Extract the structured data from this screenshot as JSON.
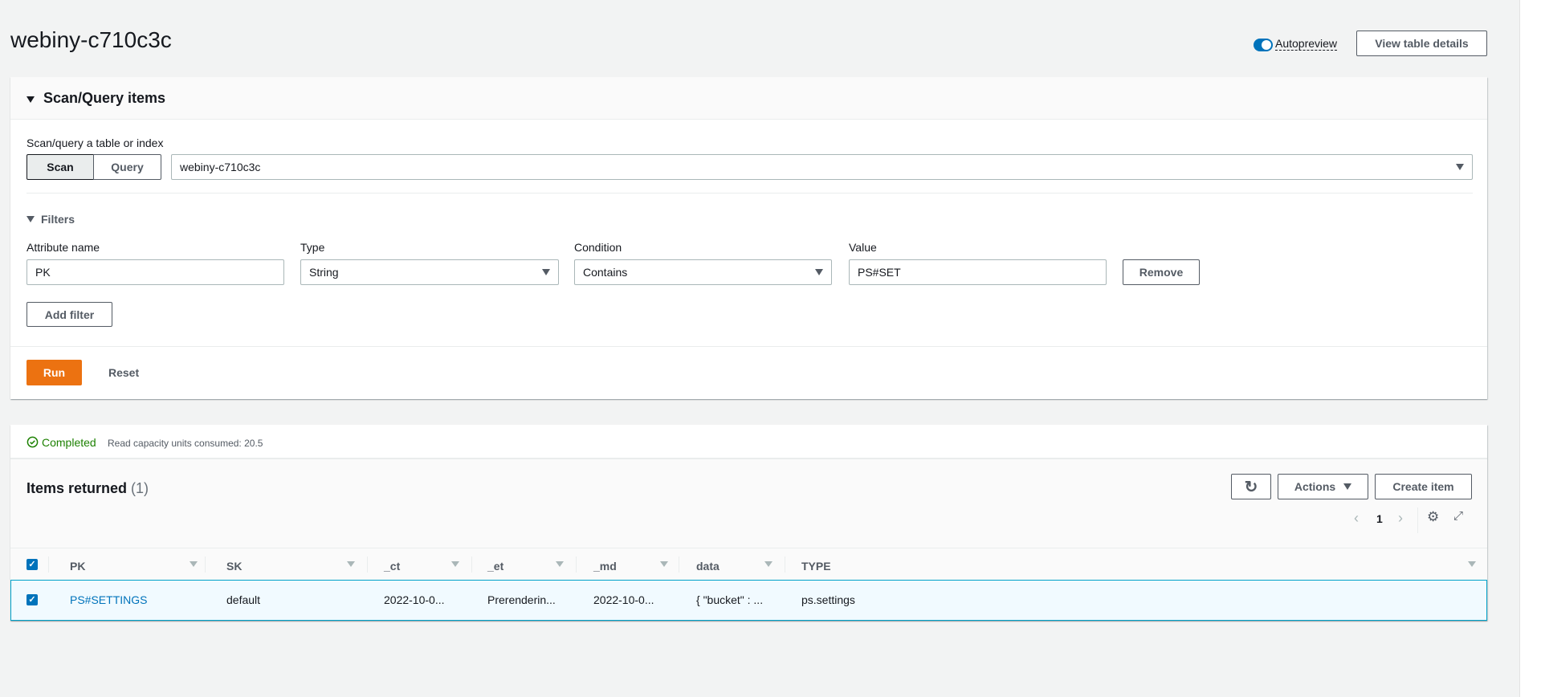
{
  "page": {
    "title": "webiny-c710c3c",
    "autopreview_label": "Autopreview",
    "autopreview_on": true,
    "view_table_details": "View table details"
  },
  "scan": {
    "header": "Scan/Query items",
    "source_label": "Scan/query a table or index",
    "scan_tab": "Scan",
    "query_tab": "Query",
    "selected_tab": "Scan",
    "table_select": "webiny-c710c3c",
    "filters_label": "Filters",
    "filter": {
      "attr_label": "Attribute name",
      "attr_value": "PK",
      "type_label": "Type",
      "type_value": "String",
      "cond_label": "Condition",
      "cond_value": "Contains",
      "value_label": "Value",
      "value_value": "PS#SET",
      "remove": "Remove"
    },
    "add_filter": "Add filter",
    "run": "Run",
    "reset": "Reset"
  },
  "results": {
    "status": "Completed",
    "capacity": "Read capacity units consumed: 20.5",
    "items_title": "Items returned",
    "items_count": "(1)",
    "actions": "Actions",
    "create_item": "Create item",
    "page": "1",
    "columns": [
      "PK",
      "SK",
      "_ct",
      "_et",
      "_md",
      "data",
      "TYPE"
    ],
    "rows": [
      {
        "selected": true,
        "cells": [
          "PS#SETTINGS",
          "default",
          "2022-10-0...",
          "Prerenderin...",
          "2022-10-0...",
          "{ \"bucket\" : ...",
          "ps.settings"
        ]
      }
    ]
  },
  "colors": {
    "accent": "#0073bb",
    "run": "#ec7211",
    "success": "#1d8102"
  }
}
